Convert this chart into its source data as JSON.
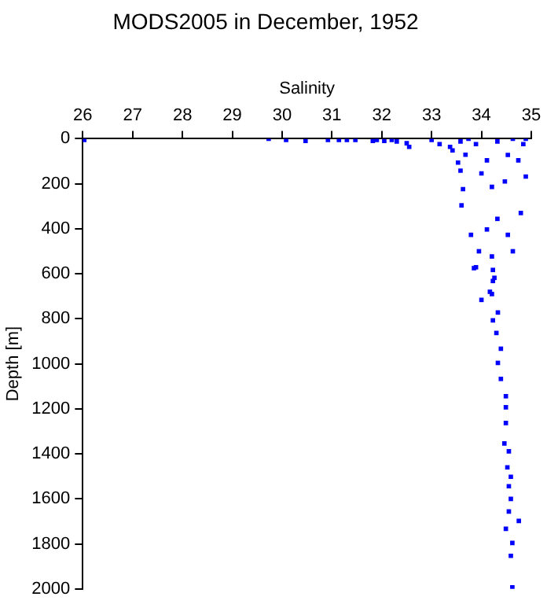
{
  "chart_data": {
    "type": "scatter",
    "title": "MODS2005 in December, 1952",
    "xlabel": "Salinity",
    "ylabel": "Depth [m]",
    "xlim": [
      26,
      35
    ],
    "xticks": [
      26,
      27,
      28,
      29,
      30,
      31,
      32,
      33,
      34,
      35
    ],
    "ylim": [
      2000,
      0
    ],
    "yticks": [
      0,
      200,
      400,
      600,
      800,
      1000,
      1200,
      1400,
      1600,
      1800,
      2000
    ],
    "grid": false,
    "legend": false,
    "marker": "square",
    "series": [
      {
        "color": "#0000ff",
        "x": [
          26.03,
          29.73,
          30.08,
          30.47,
          30.92,
          31.14,
          31.3,
          31.47,
          31.82,
          31.9,
          32.05,
          32.2,
          32.3,
          32.5,
          32.55,
          33.0,
          33.16,
          33.37,
          33.58,
          33.42,
          33.68,
          33.53,
          33.58,
          33.63,
          33.6,
          33.89,
          34.11,
          34.0,
          34.21,
          34.47,
          34.74,
          34.84,
          34.89,
          34.79,
          34.53,
          34.32,
          34.11,
          33.95,
          33.79,
          33.89,
          34.21,
          34.26,
          34.21,
          34.63,
          34.53,
          34.32,
          34.63,
          34.89,
          33.74,
          33.85,
          34.23,
          34.23,
          34.17,
          34.0,
          34.33,
          34.23,
          34.3,
          34.39,
          34.33,
          34.39,
          34.49,
          34.49,
          34.49,
          34.46,
          34.55,
          34.52,
          34.59,
          34.55,
          34.59,
          34.55,
          34.75,
          34.49,
          34.62,
          34.59,
          34.62
        ],
        "values": [
          5,
          0,
          5,
          10,
          5,
          5,
          5,
          5,
          10,
          5,
          10,
          5,
          12,
          20,
          36,
          5,
          24,
          36,
          12,
          52,
          71,
          106,
          142,
          224,
          296,
          24,
          96,
          154,
          214,
          190,
          96,
          24,
          168,
          330,
          427,
          356,
          403,
          500,
          427,
          571,
          523,
          618,
          690,
          500,
          72,
          12,
          0,
          0,
          0,
          575,
          583,
          632,
          680,
          716,
          772,
          807,
          863,
          933,
          996,
          1067,
          1144,
          1193,
          1263,
          1354,
          1389,
          1460,
          1502,
          1544,
          1600,
          1656,
          1698,
          1733,
          1796,
          1853,
          1993
        ]
      }
    ]
  }
}
